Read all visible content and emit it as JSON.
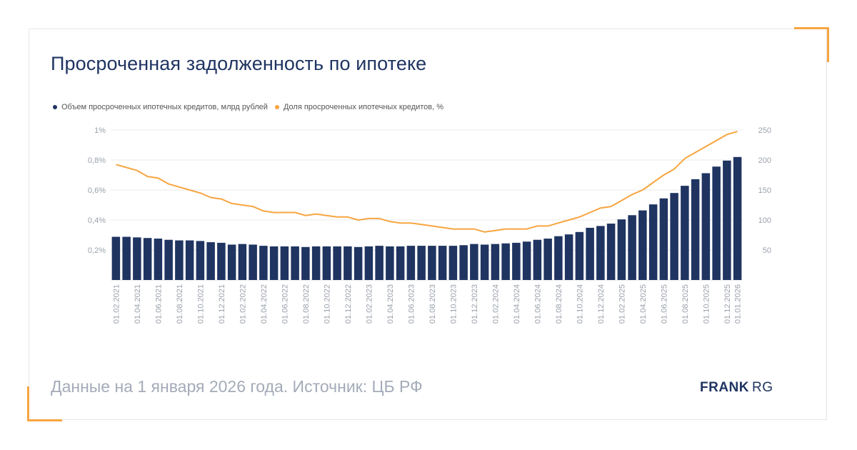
{
  "title": "Просроченная задолженность по ипотеке",
  "source": "Данные на 1 января 2026 года. Источник: ЦБ РФ",
  "logo": {
    "bold": "FRANK",
    "light": "RG"
  },
  "colors": {
    "bars": "#1f3461",
    "line": "#f7a541",
    "accent": "#f7a541",
    "title": "#1f3461"
  },
  "legend": [
    {
      "label": "Объем просроченных ипотечных кредитов, млрд рублей",
      "color": "#1f3461"
    },
    {
      "label": "Доля просроченных ипотечных кредитов, %",
      "color": "#f7a541"
    }
  ],
  "chart_data": {
    "type": "bar",
    "legend_position": "top-left",
    "grid": true,
    "categories": [
      "01.02.2021",
      "",
      "01.04.2021",
      "",
      "01.06.2021",
      "",
      "01.08.2021",
      "",
      "01.10.2021",
      "",
      "01.12.2021",
      "",
      "01.02.2022",
      "",
      "01.04.2022",
      "",
      "01.06.2022",
      "",
      "01.08.2022",
      "",
      "01.10.2022",
      "",
      "01.12.2022",
      "",
      "01.02.2023",
      "",
      "01.04.2023",
      "",
      "01.06.2023",
      "",
      "01.08.2023",
      "",
      "01.10.2023",
      "",
      "01.12.2023",
      "",
      "01.02.2024",
      "",
      "01.04.2024",
      "",
      "01.06.2024",
      "",
      "01.08.2024",
      "",
      "01.10.2024",
      "",
      "01.12.2024",
      "",
      "01.02.2025",
      "",
      "01.04.2025",
      "",
      "01.06.2025",
      "",
      "01.08.2025",
      "",
      "01.10.2025",
      "",
      "01.12.2025",
      "01.01.2026"
    ],
    "left_axis": {
      "ticks": [
        "0,2%",
        "0,4%",
        "0,6%",
        "0,8%",
        "1%"
      ],
      "range": [
        0,
        1
      ]
    },
    "right_axis": {
      "ticks": [
        "50",
        "100",
        "150",
        "200",
        "250"
      ],
      "range": [
        0,
        250
      ]
    },
    "series": [
      {
        "name": "Объем просроченных ипотечных кредитов, млрд рублей",
        "type": "bar",
        "axis": "right",
        "values": [
          72,
          72,
          71,
          70,
          69,
          67,
          66,
          66,
          65,
          63,
          62,
          59,
          60,
          59,
          57,
          56,
          56,
          56,
          55,
          56,
          56,
          56,
          56,
          55,
          56,
          57,
          56,
          56,
          57,
          57,
          57,
          57,
          57,
          58,
          60,
          59,
          60,
          61,
          62,
          64,
          67,
          69,
          73,
          76,
          80,
          87,
          90,
          94,
          101,
          108,
          116,
          126,
          136,
          145,
          157,
          168,
          178,
          189,
          199,
          205
        ],
        "stroke": "#1f3461"
      },
      {
        "name": "Доля просроченных ипотечных кредитов, %",
        "type": "line",
        "axis": "left",
        "values": [
          0.77,
          0.75,
          0.73,
          0.69,
          0.68,
          0.64,
          0.62,
          0.6,
          0.58,
          0.55,
          0.54,
          0.51,
          0.5,
          0.49,
          0.46,
          0.45,
          0.45,
          0.45,
          0.43,
          0.44,
          0.43,
          0.42,
          0.42,
          0.4,
          0.41,
          0.41,
          0.39,
          0.38,
          0.38,
          0.37,
          0.36,
          0.35,
          0.34,
          0.34,
          0.34,
          0.32,
          0.33,
          0.34,
          0.34,
          0.34,
          0.36,
          0.36,
          0.38,
          0.4,
          0.42,
          0.45,
          0.48,
          0.49,
          0.53,
          0.57,
          0.6,
          0.65,
          0.7,
          0.74,
          0.81,
          0.85,
          0.89,
          0.93,
          0.97,
          0.99
        ],
        "stroke": "#f7a541"
      }
    ]
  }
}
